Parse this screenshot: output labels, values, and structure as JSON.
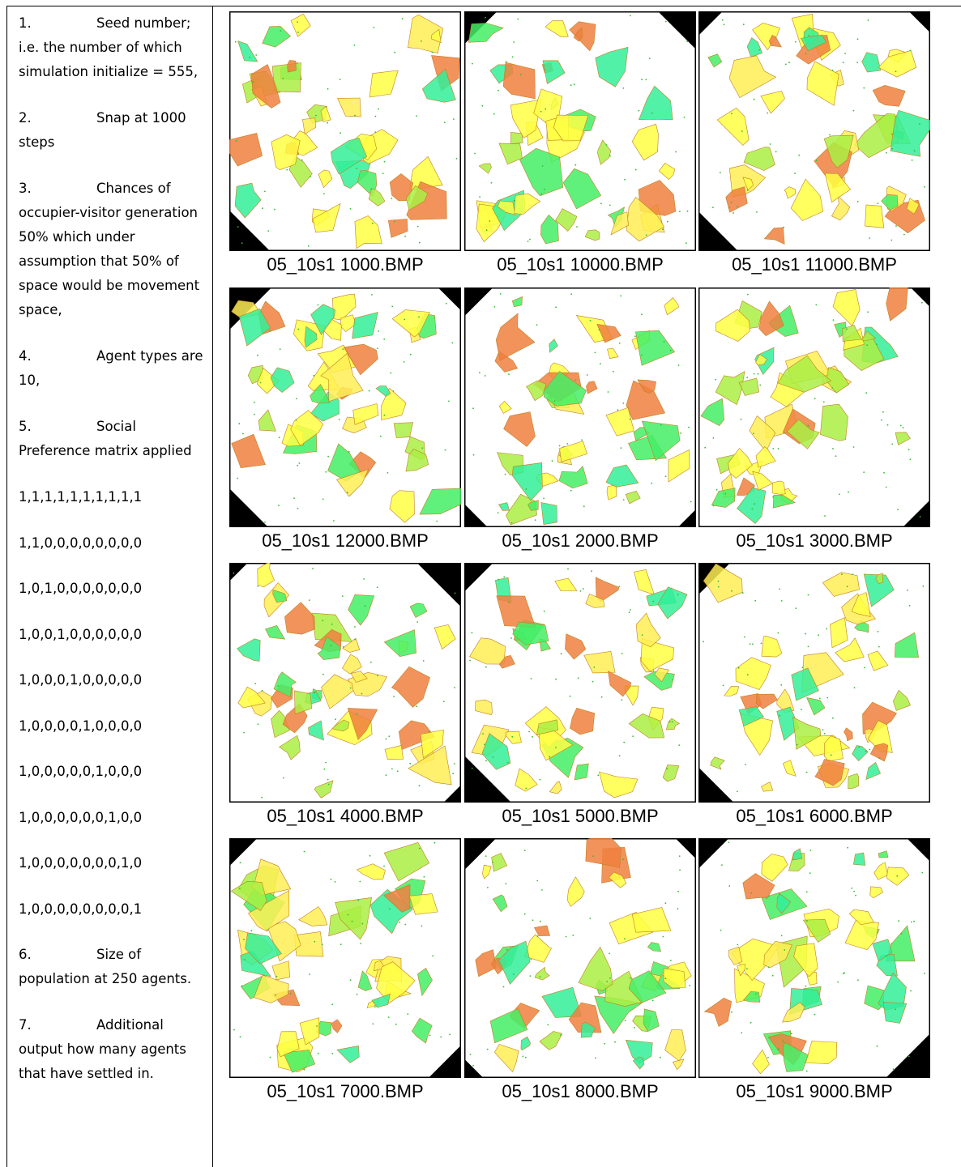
{
  "items": [
    {
      "number": "1.",
      "text": "Seed number; i.e. the number of which simulation initialize = 555,"
    },
    {
      "number": "2.",
      "text": "Snap at 1000 steps"
    },
    {
      "number": "3.",
      "text": "Chances of occupier-visitor generation 50% which under assumption that 50% of space would be movement space,"
    },
    {
      "number": "4.",
      "text": "Agent types are 10,"
    },
    {
      "number": "5.",
      "text": "Social Preference matrix applied"
    },
    {
      "number": "6.",
      "text": "Size of population at 250 agents."
    },
    {
      "number": "7.",
      "text": "Additional output how many agents that have settled in."
    }
  ],
  "matrix": [
    "1,1,1,1,1,1,1,1,1,1",
    "1,1,0,0,0,0,0,0,0,0",
    "1,0,1,0,0,0,0,0,0,0",
    "1,0,0,1,0,0,0,0,0,0",
    "1,0,0,0,1,0,0,0,0,0",
    "1,0,0,0,0,1,0,0,0,0",
    "1,0,0,0,0,0,1,0,0,0",
    "1,0,0,0,0,0,0,1,0,0",
    "1,0,0,0,0,0,0,0,1,0",
    "1,0,0,0,0,0,0,0,0,1"
  ],
  "images": [
    {
      "caption": "05_10s1 1000.BMP"
    },
    {
      "caption": "05_10s1 10000.BMP"
    },
    {
      "caption": "05_10s1 11000.BMP"
    },
    {
      "caption": "05_10s1 12000.BMP"
    },
    {
      "caption": "05_10s1 2000.BMP"
    },
    {
      "caption": "05_10s1 3000.BMP"
    },
    {
      "caption": "05_10s1 4000.BMP"
    },
    {
      "caption": "05_10s1 5000.BMP"
    },
    {
      "caption": "05_10s1 6000.BMP"
    },
    {
      "caption": "05_10s1 7000.BMP"
    },
    {
      "caption": "05_10s1 8000.BMP"
    },
    {
      "caption": "05_10s1 9000.BMP"
    }
  ]
}
